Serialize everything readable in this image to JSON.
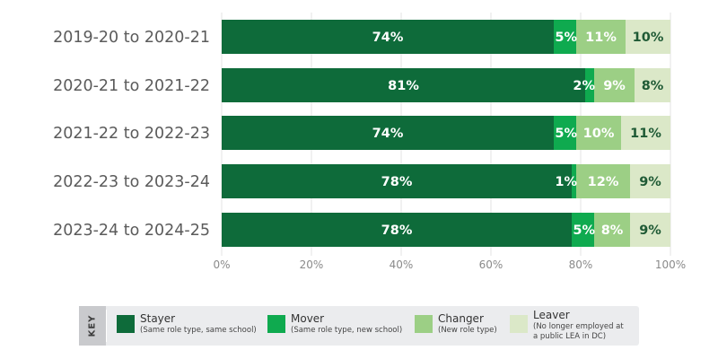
{
  "chart_data": {
    "type": "bar",
    "orientation": "horizontal",
    "stacked": true,
    "categories": [
      "2019-20 to 2020-21",
      "2020-21 to 2021-22",
      "2021-22 to 2022-23",
      "2022-23 to 2023-24",
      "2023-24 to 2024-25"
    ],
    "series": [
      {
        "name": "Stayer",
        "color": "#0e6b3a",
        "label_color": "#ffffff",
        "values": [
          74,
          81,
          74,
          78,
          78
        ],
        "labels": [
          "74%",
          "81%",
          "74%",
          "78%",
          "78%"
        ]
      },
      {
        "name": "Mover",
        "color": "#0faa4f",
        "label_color": "#ffffff",
        "values": [
          5,
          2,
          5,
          1,
          5
        ],
        "labels": [
          "5%",
          "2%",
          "5%",
          "1%",
          "5%"
        ]
      },
      {
        "name": "Changer",
        "color": "#9ccf85",
        "label_color": "#ffffff",
        "values": [
          11,
          9,
          10,
          12,
          8
        ],
        "labels": [
          "11%",
          "9%",
          "10%",
          "12%",
          "8%"
        ]
      },
      {
        "name": "Leaver",
        "color": "#dbe8c8",
        "label_color": "#1f5a35",
        "values": [
          10,
          8,
          11,
          9,
          9
        ],
        "labels": [
          "10%",
          "8%",
          "11%",
          "9%",
          "9%"
        ]
      }
    ],
    "xlim": [
      0,
      100
    ],
    "xticks": [
      "0%",
      "20%",
      "40%",
      "60%",
      "80%",
      "100%"
    ],
    "grid": true,
    "legend_position": "bottom"
  },
  "legend": {
    "key_label": "KEY",
    "items": [
      {
        "name": "Stayer",
        "desc": [
          "(Same role type, same school)"
        ],
        "color": "#0e6b3a"
      },
      {
        "name": "Mover",
        "desc": [
          "(Same role type, new school)"
        ],
        "color": "#0faa4f"
      },
      {
        "name": "Changer",
        "desc": [
          "(New role type)"
        ],
        "color": "#9ccf85"
      },
      {
        "name": "Leaver",
        "desc": [
          "(No longer employed at",
          "a public LEA in DC)"
        ],
        "color": "#dbe8c8"
      }
    ]
  },
  "colors": {
    "key_tab": "#c9cacd",
    "grid": "#e3e3e3"
  }
}
